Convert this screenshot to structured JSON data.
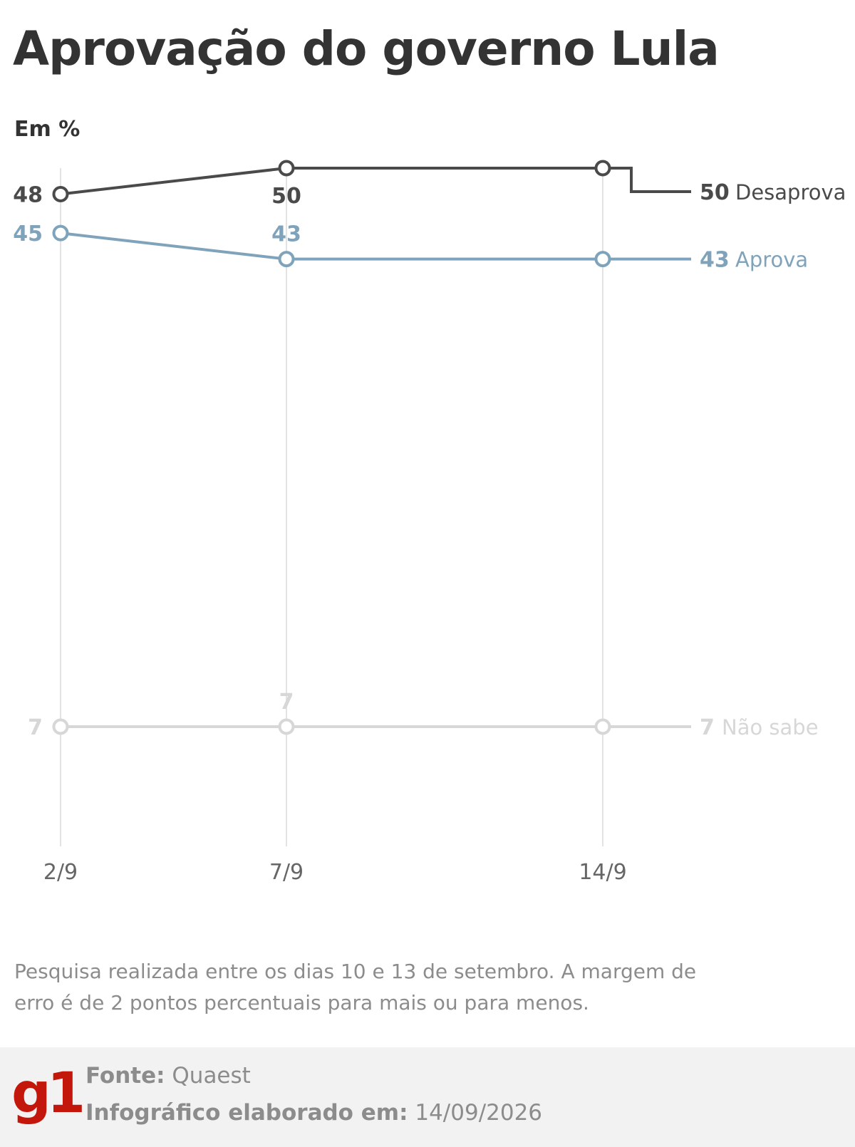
{
  "title": "Aprovação do governo Lula",
  "unit_label": "Em %",
  "note": "Pesquisa realizada entre os dias 10 e 13 de setembro. A margem de erro é de 2 pontos percentuais para mais ou para menos.",
  "footer": {
    "logo": "g1",
    "source_label": "Fonte:",
    "source_value": "Quaest",
    "date_label": "Infográfico elaborado em:",
    "date_value": "14/09/2026"
  },
  "chart_data": {
    "type": "line",
    "x": [
      "2/9",
      "7/9",
      "14/9"
    ],
    "ylim": [
      0,
      55
    ],
    "grid": "vertical lines at each date",
    "legend": "end-of-line labels at right",
    "series": [
      {
        "name": "Desaprova",
        "values": [
          48,
          50,
          50
        ],
        "color": "#4a4a4a"
      },
      {
        "name": "Aprova",
        "values": [
          45,
          43,
          43
        ],
        "color": "#7fa3bb"
      },
      {
        "name": "Não sabe",
        "values": [
          7,
          7,
          7
        ],
        "color": "#d7d7d7"
      }
    ]
  }
}
